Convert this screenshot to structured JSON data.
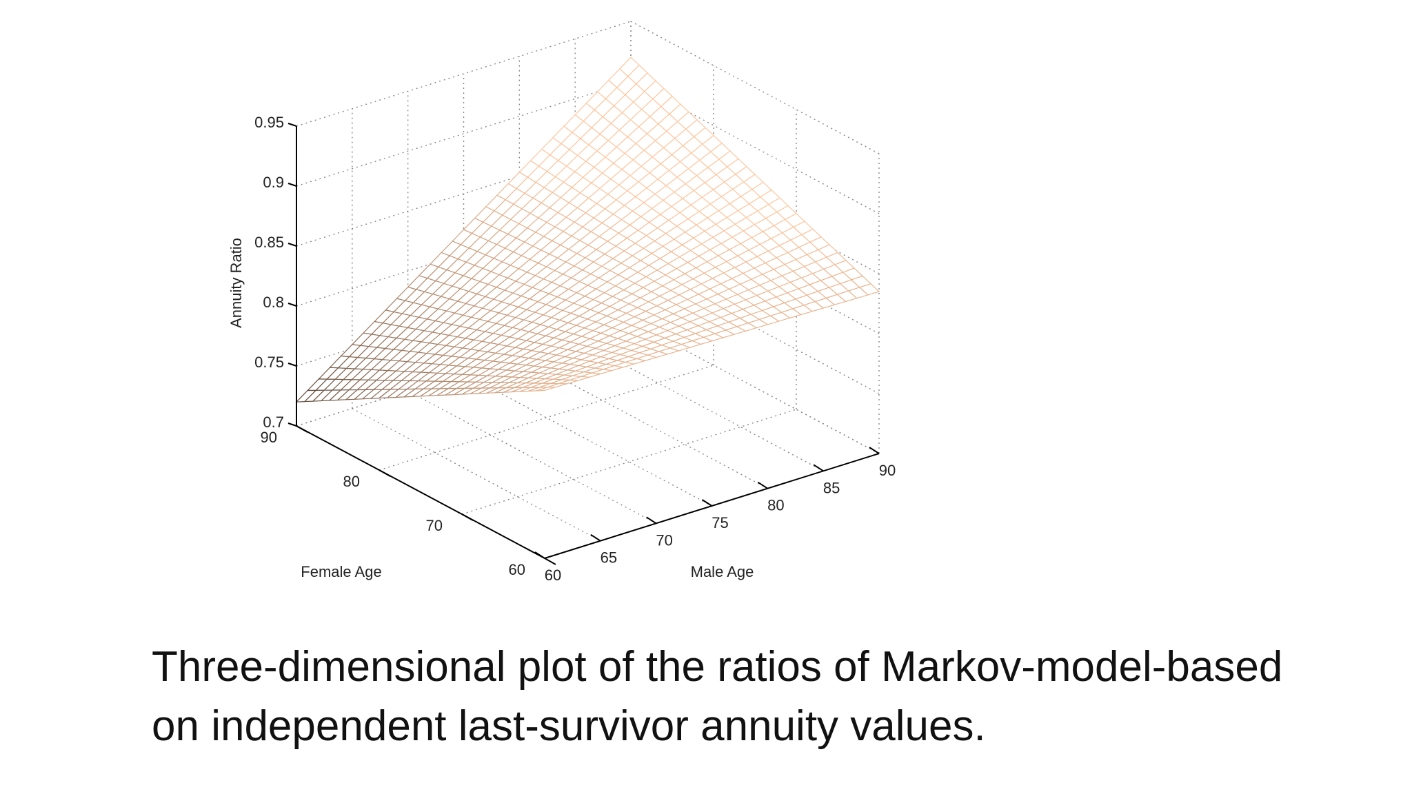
{
  "slide": {
    "caption_line1": "Three-dimensional plot of the ratios of Markov-model-based",
    "caption_line2": "on independent last-survivor annuity values."
  },
  "chart_data": {
    "type": "surface3d",
    "title": "",
    "xlabel": "Male Age",
    "ylabel": "Female Age",
    "zlabel": "Annuity Ratio",
    "xlim": [
      60,
      90
    ],
    "ylim": [
      60,
      90
    ],
    "zlim": [
      0.7,
      0.95
    ],
    "x_ticks": [
      60,
      65,
      70,
      75,
      80,
      85,
      90
    ],
    "y_ticks": [
      60,
      70,
      80,
      90
    ],
    "z_ticks": [
      0.7,
      0.75,
      0.8,
      0.85,
      0.9,
      0.95
    ],
    "x_tick_labels": [
      "60",
      "65",
      "70",
      "75",
      "80",
      "85",
      "90"
    ],
    "y_tick_labels": [
      "60",
      "70",
      "80",
      "90"
    ],
    "z_tick_labels": [
      "0.7",
      "0.75",
      "0.8",
      "0.85",
      "0.9",
      "0.95"
    ],
    "grid": true,
    "colormap": "copper",
    "corner_values": {
      "male60_female60": 0.84,
      "male90_female60": 0.835,
      "male60_female90": 0.72,
      "male90_female90": 0.92
    },
    "colors": {
      "surface_dark": "#1a1410",
      "surface_light": "#ffc7a0",
      "grid": "#888888",
      "axis": "#000000"
    }
  }
}
